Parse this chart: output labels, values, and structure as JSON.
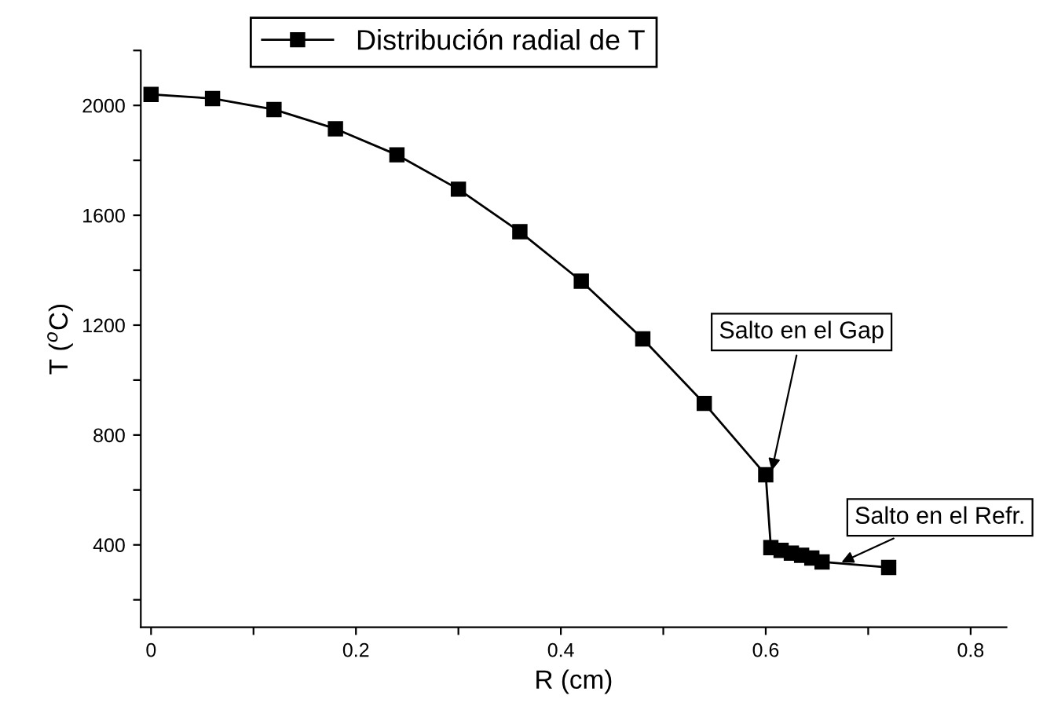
{
  "chart_data": {
    "type": "line",
    "xlabel": "R (cm)",
    "ylabel": "T ($^{o}$C)",
    "x": [
      0,
      0.06,
      0.12,
      0.18,
      0.24,
      0.3,
      0.36,
      0.42,
      0.48,
      0.54,
      0.6,
      0.605,
      0.615,
      0.625,
      0.635,
      0.645,
      0.655,
      0.72
    ],
    "series": [
      {
        "name": "Distribución radial de T",
        "color": "#000000",
        "values": [
          2040,
          2025,
          1985,
          1915,
          1820,
          1695,
          1540,
          1360,
          1150,
          915,
          655,
          390,
          380,
          370,
          362,
          352,
          338,
          318
        ]
      }
    ],
    "xlim": [
      -0.01,
      0.835
    ],
    "ylim": [
      100,
      2200
    ],
    "xticks": [
      0,
      {
        "value": 0.1,
        "label": null
      },
      0.2,
      {
        "value": 0.3,
        "label": null
      },
      0.4,
      {
        "value": 0.5,
        "label": null
      },
      0.6,
      {
        "value": 0.7,
        "label": null
      },
      0.8
    ],
    "yticks": [
      {
        "value": 200,
        "label": null
      },
      400,
      {
        "value": 600,
        "label": null
      },
      800,
      {
        "value": 1000,
        "label": null
      },
      1200,
      {
        "value": 1400,
        "label": null
      },
      1600,
      {
        "value": 1800,
        "label": null
      },
      2000,
      {
        "value": 2200,
        "label": null
      }
    ],
    "annotations": [
      {
        "text": "Salto en el Gap",
        "x": 0.605,
        "y": 655
      },
      {
        "text": "Salto en el Refr.",
        "x": 0.67,
        "y": 330
      }
    ],
    "marker": "square",
    "line_style": "solid",
    "grid": false,
    "legend": "top"
  }
}
